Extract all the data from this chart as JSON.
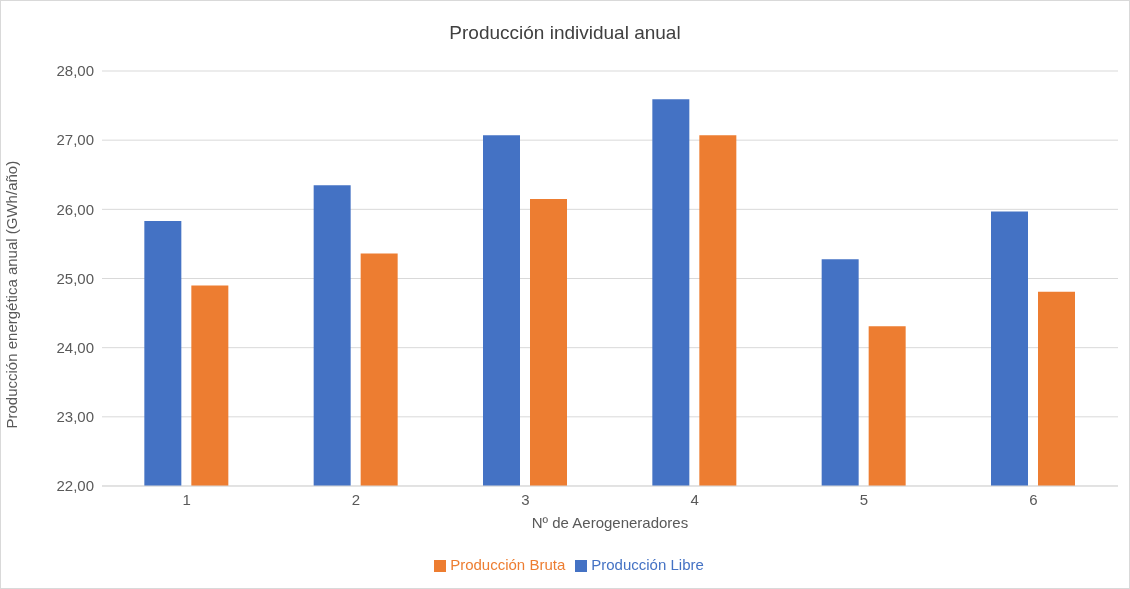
{
  "chart_data": {
    "type": "bar",
    "title": "Producción individual anual",
    "xlabel": "Nº de Aerogeneradores",
    "ylabel": "Producción energética anual (GWh/año)",
    "categories": [
      "1",
      "2",
      "3",
      "4",
      "5",
      "6"
    ],
    "series": [
      {
        "name": "Producción Libre",
        "color": "#4472c4",
        "values": [
          25.83,
          26.35,
          27.07,
          27.59,
          25.28,
          25.97
        ]
      },
      {
        "name": "Producción Bruta",
        "color": "#ed7d31",
        "values": [
          24.9,
          25.36,
          26.15,
          27.07,
          24.31,
          24.81
        ]
      }
    ],
    "ylim": [
      22,
      28
    ],
    "yticks": [
      {
        "value": 22,
        "label": "22,00"
      },
      {
        "value": 23,
        "label": "23,00"
      },
      {
        "value": 24,
        "label": "24,00"
      },
      {
        "value": 25,
        "label": "25,00"
      },
      {
        "value": 26,
        "label": "26,00"
      },
      {
        "value": 27,
        "label": "27,00"
      },
      {
        "value": 28,
        "label": "28,00"
      }
    ],
    "grid": "y",
    "legend": "bottom"
  }
}
